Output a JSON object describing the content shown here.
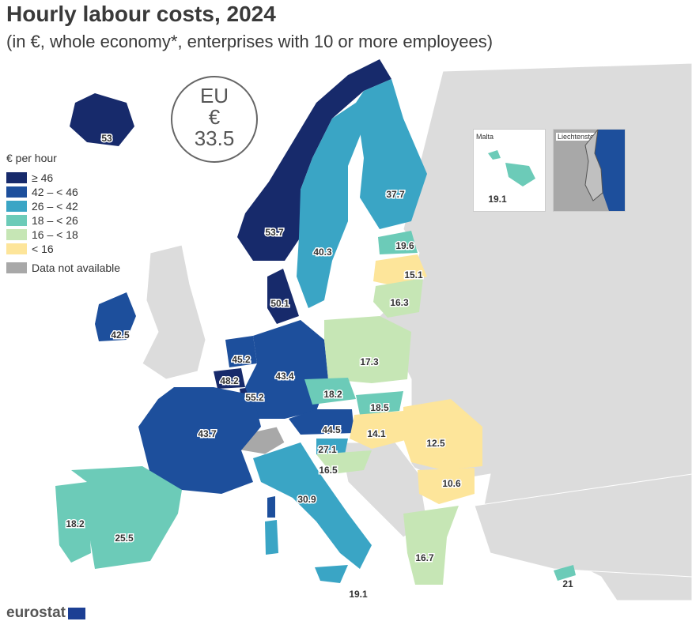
{
  "title": "Hourly labour costs, 2024",
  "subtitle": "(in €, whole economy*, enterprises with 10 or more employees)",
  "eu_badge": {
    "line1": "EU",
    "line2": "€",
    "value": "33.5"
  },
  "legend": {
    "title": "€ per hour",
    "classes": [
      {
        "label": "≥ 46",
        "color": "#172a6b"
      },
      {
        "label": "42 – < 46",
        "color": "#1d4f9c"
      },
      {
        "label": "26 – < 42",
        "color": "#3aa5c5"
      },
      {
        "label": "18 – < 26",
        "color": "#6ccbb8"
      },
      {
        "label": "16 – < 18",
        "color": "#c6e6b5"
      },
      {
        "label": "< 16",
        "color": "#fde59a"
      }
    ],
    "na_label": "Data not available",
    "na_color": "#a8a8a8"
  },
  "insets": {
    "malta_label": "Malta",
    "malta_value": "19.1",
    "liechtenstein_label": "Liechtenstein"
  },
  "countries": [
    {
      "name": "Iceland",
      "value": "53"
    },
    {
      "name": "Norway",
      "value": "53.7"
    },
    {
      "name": "Sweden",
      "value": "40.3"
    },
    {
      "name": "Finland",
      "value": "37.7"
    },
    {
      "name": "Estonia",
      "value": "19.6"
    },
    {
      "name": "Latvia",
      "value": "15.1"
    },
    {
      "name": "Lithuania",
      "value": "16.3"
    },
    {
      "name": "Denmark",
      "value": "50.1"
    },
    {
      "name": "Ireland",
      "value": "42.5"
    },
    {
      "name": "Netherlands",
      "value": "45.2"
    },
    {
      "name": "Belgium",
      "value": "48.2"
    },
    {
      "name": "Luxembourg",
      "value": "55.2"
    },
    {
      "name": "Germany",
      "value": "43.4"
    },
    {
      "name": "Poland",
      "value": "17.3"
    },
    {
      "name": "Czechia",
      "value": "18.2"
    },
    {
      "name": "Slovakia",
      "value": "18.5"
    },
    {
      "name": "Austria",
      "value": "44.5"
    },
    {
      "name": "Hungary",
      "value": "14.1"
    },
    {
      "name": "Romania",
      "value": "12.5"
    },
    {
      "name": "Bulgaria",
      "value": "10.6"
    },
    {
      "name": "Slovenia",
      "value": "27.1"
    },
    {
      "name": "Croatia",
      "value": "16.5"
    },
    {
      "name": "France",
      "value": "43.7"
    },
    {
      "name": "Italy",
      "value": "30.9"
    },
    {
      "name": "Portugal",
      "value": "18.2"
    },
    {
      "name": "Spain",
      "value": "25.5"
    },
    {
      "name": "Greece",
      "value": "16.7"
    },
    {
      "name": "Cyprus",
      "value": "21"
    },
    {
      "name": "Malta",
      "value": "19.1"
    }
  ],
  "source": "eurostat"
}
